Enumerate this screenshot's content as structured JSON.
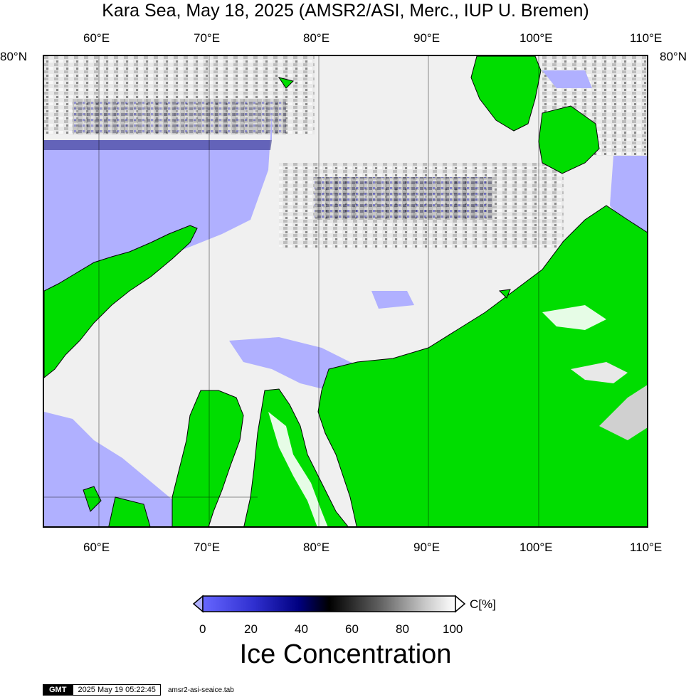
{
  "title": "Kara Sea, May 18, 2025 (AMSR2/ASI, Merc., IUP U. Bremen)",
  "map": {
    "projection": "Mercator",
    "lon_ticks": [
      "60°E",
      "70°E",
      "80°E",
      "90°E",
      "100°E",
      "110°E"
    ],
    "lat_label_left": "80°N",
    "lat_label_right": "80°N",
    "colors": {
      "land": "#00dd00",
      "open_water": "#b0b0ff",
      "ice_high": "#ffffff",
      "ice_mid": "#808080",
      "ice_low": "#000040",
      "gridline": "#000000"
    }
  },
  "colorbar": {
    "title": "Ice Concentration",
    "unit": "C[%]",
    "ticks": [
      "0",
      "20",
      "40",
      "60",
      "80",
      "100"
    ],
    "stops": [
      "#6666ff",
      "#3030d0",
      "#000080",
      "#000000",
      "#555555",
      "#aaaaaa",
      "#ffffff"
    ]
  },
  "footer": {
    "logo": "GMT",
    "timestamp": "2025 May 19 05:22:45",
    "filename": "amsr2-asi-seaice.tab"
  }
}
